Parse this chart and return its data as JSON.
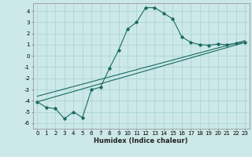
{
  "title": "",
  "xlabel": "Humidex (Indice chaleur)",
  "ylabel": "",
  "bg_color": "#cce8e8",
  "line_color": "#1a6b60",
  "grid_color": "#b0d8d8",
  "xlim": [
    -0.5,
    23.5
  ],
  "ylim": [
    -6.5,
    4.7
  ],
  "xticks": [
    0,
    1,
    2,
    3,
    4,
    5,
    6,
    7,
    8,
    9,
    10,
    11,
    12,
    13,
    14,
    15,
    16,
    17,
    18,
    19,
    20,
    21,
    22,
    23
  ],
  "yticks": [
    -6,
    -5,
    -4,
    -3,
    -2,
    -1,
    0,
    1,
    2,
    3,
    4
  ],
  "curve1_x": [
    0,
    1,
    2,
    3,
    4,
    5,
    6,
    7,
    8,
    9,
    10,
    11,
    12,
    13,
    14,
    15,
    16,
    17,
    18,
    19,
    20,
    21,
    22,
    23
  ],
  "curve1_y": [
    -4.1,
    -4.6,
    -4.7,
    -5.6,
    -5.0,
    -5.5,
    -3.0,
    -2.8,
    -1.1,
    0.5,
    2.4,
    3.0,
    4.3,
    4.3,
    3.8,
    3.3,
    1.7,
    1.2,
    1.0,
    0.95,
    1.05,
    1.0,
    1.1,
    1.2
  ],
  "line2_x": [
    0,
    23
  ],
  "line2_y": [
    -4.1,
    1.2
  ],
  "line3_x": [
    0,
    23
  ],
  "line3_y": [
    -3.6,
    1.35
  ],
  "tick_fontsize": 5.0,
  "xlabel_fontsize": 6.0
}
